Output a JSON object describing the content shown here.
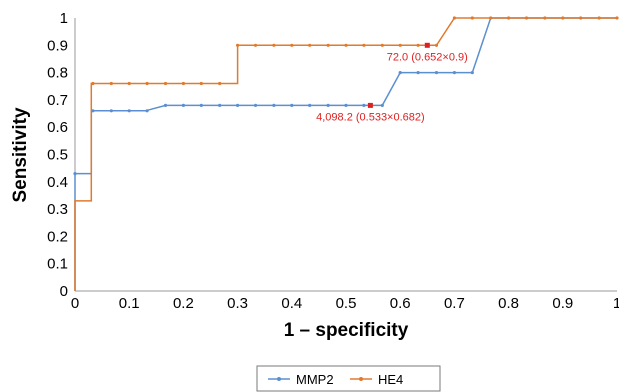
{
  "chart_data": {
    "type": "line",
    "xlabel": "1 – specificity",
    "ylabel": "Sensitivity",
    "xlim": [
      0,
      1
    ],
    "ylim": [
      0,
      1
    ],
    "x_ticks": [
      "0",
      "0.1",
      "0.2",
      "0.3",
      "0.4",
      "0.5",
      "0.6",
      "0.7",
      "0.8",
      "0.9",
      "1"
    ],
    "y_ticks": [
      "0",
      "0.1",
      "0.2",
      "0.3",
      "0.4",
      "0.5",
      "0.6",
      "0.7",
      "0.8",
      "0.9",
      "1"
    ],
    "grid": false,
    "legend_position": "bottom",
    "series": [
      {
        "name": "MMP2",
        "color": "#5b8fd0",
        "line": [
          [
            0,
            0
          ],
          [
            0,
            0.43
          ],
          [
            0.03,
            0.43
          ],
          [
            0.03,
            0.66
          ],
          [
            0.13,
            0.66
          ],
          [
            0.167,
            0.68
          ],
          [
            0.567,
            0.68
          ],
          [
            0.6,
            0.8
          ],
          [
            0.733,
            0.8
          ],
          [
            0.767,
            1
          ],
          [
            1,
            1
          ]
        ],
        "markers_x": [
          0,
          0.033,
          0.067,
          0.1,
          0.133,
          0.167,
          0.2,
          0.233,
          0.267,
          0.3,
          0.333,
          0.367,
          0.4,
          0.433,
          0.467,
          0.5,
          0.533,
          0.567,
          0.6,
          0.633,
          0.667,
          0.7,
          0.733
        ]
      },
      {
        "name": "HE4",
        "color": "#e07a2e",
        "line": [
          [
            0,
            0
          ],
          [
            0,
            0.33
          ],
          [
            0.03,
            0.33
          ],
          [
            0.03,
            0.76
          ],
          [
            0.3,
            0.76
          ],
          [
            0.3,
            0.9
          ],
          [
            0.667,
            0.9
          ],
          [
            0.7,
            1
          ],
          [
            1,
            1
          ]
        ],
        "markers_x": [
          0.033,
          0.067,
          0.1,
          0.133,
          0.167,
          0.2,
          0.233,
          0.267,
          0.3,
          0.333,
          0.367,
          0.4,
          0.433,
          0.467,
          0.5,
          0.533,
          0.567,
          0.6,
          0.633,
          0.667,
          0.7,
          0.733,
          0.767,
          0.8,
          0.833,
          0.867,
          0.9,
          0.933,
          0.967,
          1
        ]
      }
    ],
    "annotations": [
      {
        "text": "4,098.2 (0.533×0.682)",
        "x": 0.545,
        "y": 0.68,
        "color": "#e02020"
      },
      {
        "text": "72.0 (0.652×0.9)",
        "x": 0.65,
        "y": 0.9,
        "color": "#e02020"
      }
    ]
  }
}
